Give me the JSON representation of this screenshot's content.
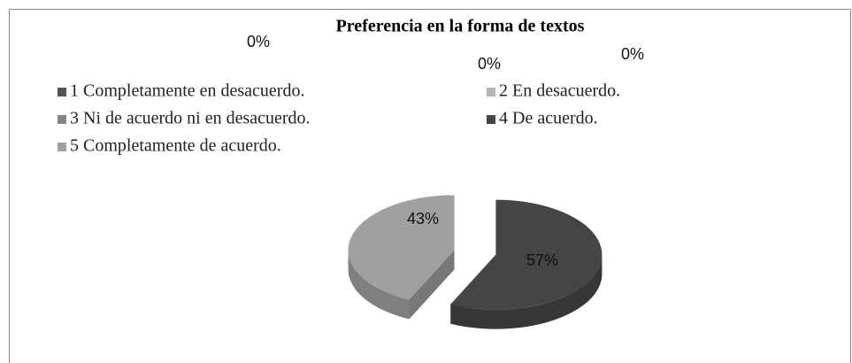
{
  "chart_data": {
    "type": "pie",
    "title": "Preferencia en la forma de textos",
    "categories": [
      "1 Completamente en desacuerdo.",
      "2  En desacuerdo.",
      "3 Ni de acuerdo ni en desacuerdo.",
      "4 De acuerdo.",
      "5 Completamente de acuerdo."
    ],
    "values": [
      0,
      0,
      0,
      57,
      43
    ],
    "value_labels": [
      "0%",
      "0%",
      "0%",
      "57%",
      "43%"
    ],
    "colors": [
      "#555555",
      "#b4b4b4",
      "#858585",
      "#454545",
      "#a0a0a0"
    ],
    "legend": "top"
  }
}
